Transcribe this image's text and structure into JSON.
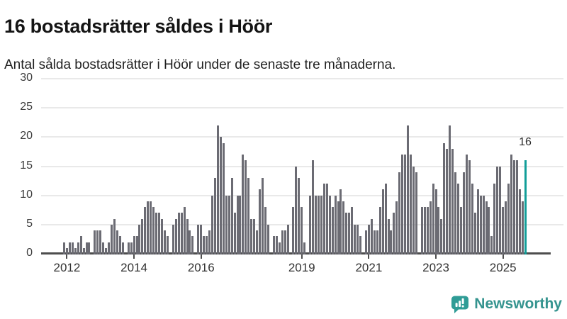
{
  "header": {
    "title": "16 bostadsrätter såldes i Höör",
    "subtitle": "Antal sålda bostadsrätter i Höör under de senaste tre månaderna."
  },
  "chart_data": {
    "type": "bar",
    "title": "16 bostadsrätter såldes i Höör",
    "subtitle": "Antal sålda bostadsrätter i Höör under de senaste tre månaderna.",
    "xlabel": "",
    "ylabel": "",
    "ylim": [
      0,
      30
    ],
    "y_ticks": [
      0,
      5,
      10,
      15,
      20,
      25,
      30
    ],
    "grid": true,
    "legend": false,
    "x_ticks": [
      {
        "label": "2012",
        "month_index": 1
      },
      {
        "label": "2014",
        "month_index": 25
      },
      {
        "label": "2016",
        "month_index": 49
      },
      {
        "label": "2019",
        "month_index": 85
      },
      {
        "label": "2021",
        "month_index": 109
      },
      {
        "label": "2023",
        "month_index": 133
      },
      {
        "label": "2025",
        "month_index": 157
      }
    ],
    "values": [
      2,
      1,
      2,
      2,
      1,
      2,
      3,
      1,
      2,
      2,
      0,
      4,
      4,
      4,
      2,
      1,
      2,
      5,
      6,
      4,
      3,
      2,
      0,
      2,
      2,
      3,
      3,
      5,
      6,
      8,
      9,
      9,
      8,
      7,
      7,
      6,
      4,
      3,
      0,
      5,
      6,
      7,
      7,
      8,
      6,
      4,
      3,
      0,
      5,
      5,
      3,
      3,
      4,
      10,
      13,
      22,
      20,
      19,
      10,
      10,
      13,
      7,
      10,
      10,
      17,
      16,
      13,
      6,
      6,
      4,
      11,
      13,
      8,
      5,
      0,
      3,
      3,
      2,
      4,
      4,
      5,
      0,
      8,
      15,
      13,
      8,
      2,
      0,
      10,
      16,
      10,
      10,
      10,
      12,
      12,
      10,
      8,
      10,
      9,
      11,
      9,
      7,
      7,
      8,
      5,
      5,
      3,
      0,
      4,
      5,
      6,
      4,
      4,
      8,
      11,
      12,
      6,
      4,
      7,
      9,
      14,
      17,
      17,
      22,
      17,
      15,
      14,
      0,
      8,
      8,
      8,
      9,
      12,
      11,
      8,
      6,
      19,
      18,
      22,
      18,
      14,
      12,
      8,
      14,
      17,
      16,
      12,
      7,
      11,
      10,
      10,
      9,
      8,
      3,
      12,
      15,
      15,
      8,
      9,
      12,
      17,
      16,
      16,
      11,
      9,
      16
    ],
    "highlight_last": true,
    "highlight_value": 16,
    "annotation_label": "16",
    "colors": {
      "bar": "#6b6b73",
      "highlight": "#129e99",
      "axis": "#4d4d4d",
      "grid": "#e9e9e9"
    }
  },
  "footer": {
    "brand": "Newsworthy",
    "icon": "newsworthy-chart-bubble-icon",
    "brand_color": "#35948f",
    "icon_color": "#2f9c96"
  }
}
